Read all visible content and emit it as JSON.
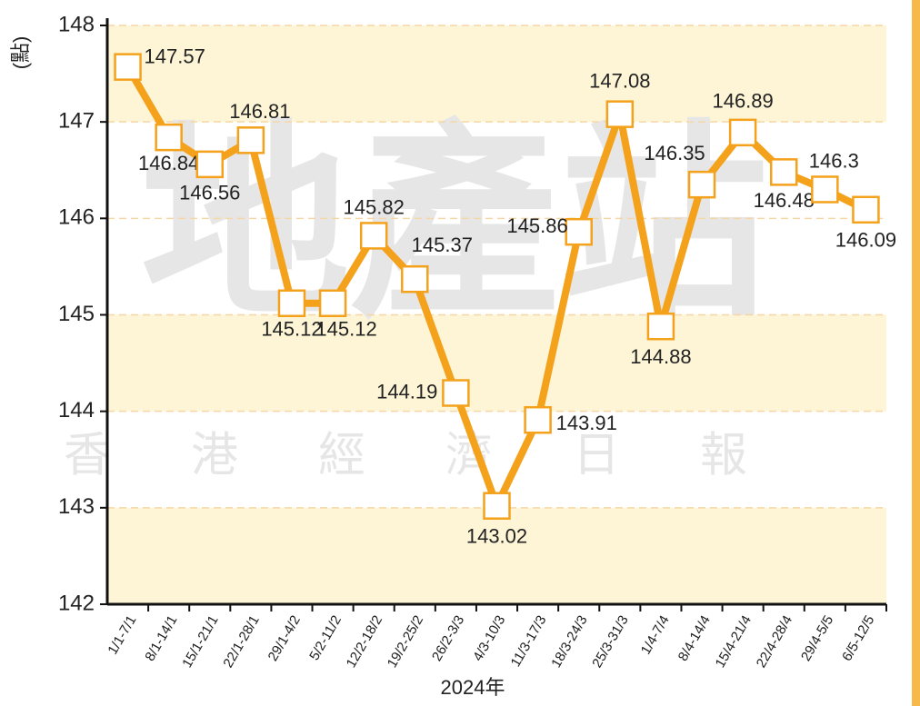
{
  "chart_data": {
    "type": "line",
    "y_label": "(點)",
    "x_label": "2024年",
    "watermark": "地產站",
    "watermark_sub": "香港經濟日報",
    "categories": [
      "1/1-7/1",
      "8/1-14/1",
      "15/1-21/1",
      "22/1-28/1",
      "29/1-4/2",
      "5/2-11/2",
      "12/2-18/2",
      "19/2-25/2",
      "26/2-3/3",
      "4/3-10/3",
      "11/3-17/3",
      "18/3-24/3",
      "25/3-31/3",
      "1/4-7/4",
      "8/4-14/4",
      "15/4-21/4",
      "22/4-28/4",
      "29/4-5/5",
      "6/5-12/5"
    ],
    "values": [
      147.57,
      146.84,
      146.56,
      146.81,
      145.12,
      145.12,
      145.82,
      145.37,
      144.19,
      143.02,
      143.91,
      145.86,
      147.08,
      144.88,
      146.35,
      146.89,
      146.48,
      146.3,
      146.09
    ],
    "color": "#f4a11c",
    "ylim": [
      142,
      148
    ],
    "yticks": [
      142,
      143,
      144,
      145,
      146,
      147,
      148
    ],
    "grid": true
  }
}
